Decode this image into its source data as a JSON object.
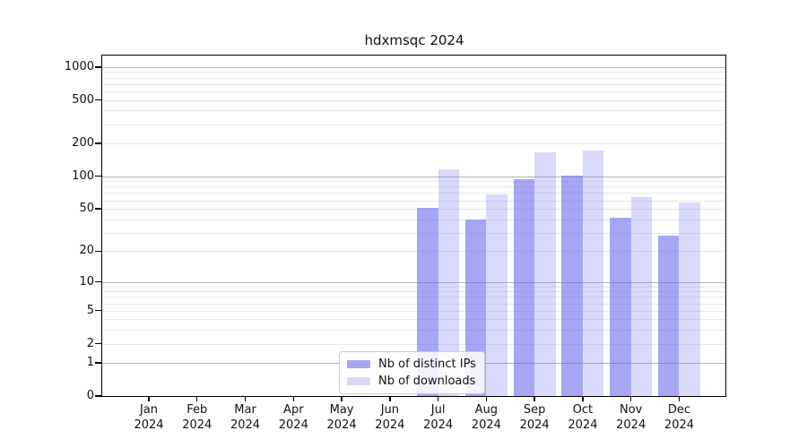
{
  "chart_data": {
    "type": "bar",
    "title": "hdxmsqc 2024",
    "yscale": "log1p",
    "ylim": [
      0,
      1274
    ],
    "yticks": [
      0,
      1,
      2,
      5,
      10,
      20,
      50,
      100,
      200,
      500,
      1000
    ],
    "grid": {
      "horizontal": true,
      "major_values": [
        1,
        10,
        100,
        1000
      ],
      "minor_values": [
        2,
        3,
        4,
        5,
        6,
        7,
        8,
        9,
        20,
        30,
        40,
        50,
        60,
        70,
        80,
        90,
        200,
        300,
        400,
        500,
        600,
        700,
        800,
        900
      ],
      "major_color": "#b3b3b3",
      "minor_color": "#e9e9e9"
    },
    "categories": [
      "Jan 2024",
      "Feb 2024",
      "Mar 2024",
      "Apr 2024",
      "May 2024",
      "Jun 2024",
      "Jul 2024",
      "Aug 2024",
      "Sep 2024",
      "Oct 2024",
      "Nov 2024",
      "Dec 2024"
    ],
    "series": [
      {
        "name": "Nb of distinct IPs",
        "color": "rgba(102,102,238,0.58)",
        "legend_color": "#a6a6f2",
        "values": [
          0,
          0,
          0,
          0,
          0,
          0,
          51,
          40,
          94,
          101,
          41,
          28
        ]
      },
      {
        "name": "Nb of downloads",
        "color": "rgba(102,102,238,0.25)",
        "legend_color": "#d9d9f7",
        "values": [
          0,
          0,
          0,
          0,
          0,
          0,
          116,
          68,
          167,
          174,
          64,
          57
        ]
      }
    ],
    "legend_position": "bottom-center-inside",
    "accent_color": "#6666ee"
  }
}
